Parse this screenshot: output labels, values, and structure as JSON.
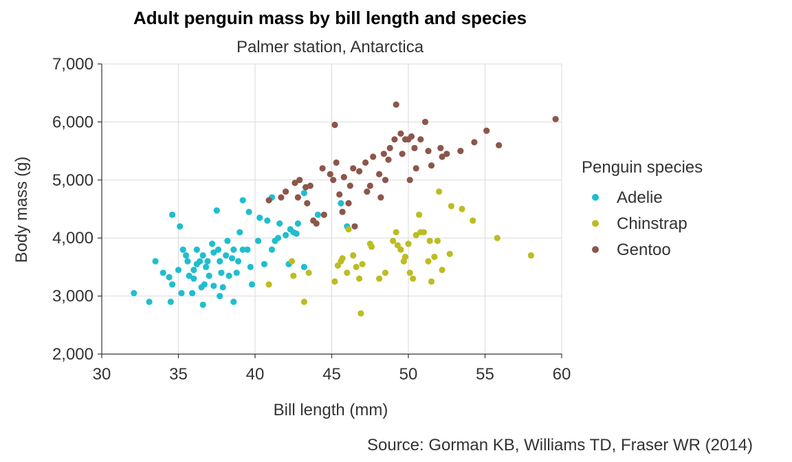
{
  "chart_data": {
    "type": "scatter",
    "title": "Adult penguin mass by bill length and species",
    "subtitle": "Palmer station, Antarctica",
    "xlabel": "Bill length (mm)",
    "ylabel": "Body mass (g)",
    "xlim": [
      30,
      60
    ],
    "ylim": [
      2000,
      7000
    ],
    "xticks": [
      30,
      35,
      40,
      45,
      50,
      55,
      60
    ],
    "xtick_labels": [
      "30",
      "35",
      "40",
      "45",
      "50",
      "55",
      "60"
    ],
    "yticks": [
      2000,
      3000,
      4000,
      5000,
      6000,
      7000
    ],
    "ytick_labels": [
      "2,000",
      "3,000",
      "4,000",
      "5,000",
      "6,000",
      "7,000"
    ],
    "grid": true,
    "legend_title": "Penguin species",
    "legend_position": "right",
    "caption": "Source: Gorman KB, Williams TD, Fraser WR (2014)",
    "series": [
      {
        "name": "Adelie",
        "color": "#1fbecf",
        "points": [
          [
            32.1,
            3050
          ],
          [
            33.1,
            2900
          ],
          [
            33.5,
            3600
          ],
          [
            34.0,
            3400
          ],
          [
            34.4,
            3325
          ],
          [
            34.5,
            2900
          ],
          [
            34.6,
            4400
          ],
          [
            34.6,
            3200
          ],
          [
            35.0,
            3450
          ],
          [
            35.1,
            4200
          ],
          [
            35.2,
            3050
          ],
          [
            35.3,
            3800
          ],
          [
            35.5,
            3700
          ],
          [
            35.6,
            3600
          ],
          [
            35.7,
            3350
          ],
          [
            35.9,
            3050
          ],
          [
            36.0,
            3450
          ],
          [
            36.0,
            3300
          ],
          [
            36.2,
            3800
          ],
          [
            36.2,
            3550
          ],
          [
            36.4,
            3600
          ],
          [
            36.5,
            3150
          ],
          [
            36.6,
            3700
          ],
          [
            36.6,
            2850
          ],
          [
            36.7,
            3200
          ],
          [
            36.8,
            3500
          ],
          [
            36.9,
            3600
          ],
          [
            37.0,
            3350
          ],
          [
            37.2,
            3900
          ],
          [
            37.3,
            3750
          ],
          [
            37.3,
            3175
          ],
          [
            37.5,
            4475
          ],
          [
            37.6,
            3800
          ],
          [
            37.7,
            3600
          ],
          [
            37.7,
            3000
          ],
          [
            37.8,
            3400
          ],
          [
            37.9,
            3150
          ],
          [
            38.1,
            3700
          ],
          [
            38.2,
            3950
          ],
          [
            38.3,
            3350
          ],
          [
            38.5,
            3650
          ],
          [
            38.6,
            3800
          ],
          [
            38.6,
            2900
          ],
          [
            38.8,
            3400
          ],
          [
            38.9,
            3600
          ],
          [
            39.0,
            4100
          ],
          [
            39.2,
            3800
          ],
          [
            39.2,
            4650
          ],
          [
            39.5,
            3800
          ],
          [
            39.6,
            4450
          ],
          [
            39.7,
            3500
          ],
          [
            39.8,
            3200
          ],
          [
            40.2,
            3950
          ],
          [
            40.3,
            4350
          ],
          [
            40.6,
            3550
          ],
          [
            40.8,
            4300
          ],
          [
            41.1,
            3800
          ],
          [
            41.1,
            4700
          ],
          [
            41.3,
            3950
          ],
          [
            41.5,
            4000
          ],
          [
            41.6,
            4250
          ],
          [
            42.0,
            4050
          ],
          [
            42.2,
            3550
          ],
          [
            42.3,
            4150
          ],
          [
            42.5,
            4100
          ],
          [
            42.7,
            4075
          ],
          [
            42.8,
            4250
          ],
          [
            43.2,
            4775
          ],
          [
            43.2,
            3500
          ],
          [
            44.1,
            4400
          ],
          [
            45.6,
            4600
          ],
          [
            46.0,
            4200
          ]
        ]
      },
      {
        "name": "Chinstrap",
        "color": "#bcbd22",
        "points": [
          [
            40.9,
            3200
          ],
          [
            42.4,
            3600
          ],
          [
            42.5,
            3350
          ],
          [
            43.2,
            2900
          ],
          [
            43.5,
            3400
          ],
          [
            45.2,
            3250
          ],
          [
            45.4,
            3525
          ],
          [
            45.6,
            3600
          ],
          [
            45.7,
            3650
          ],
          [
            46.0,
            3400
          ],
          [
            46.1,
            4150
          ],
          [
            46.4,
            3700
          ],
          [
            46.6,
            3500
          ],
          [
            46.8,
            3300
          ],
          [
            46.9,
            2700
          ],
          [
            47.0,
            3550
          ],
          [
            47.5,
            3900
          ],
          [
            47.6,
            3850
          ],
          [
            48.1,
            3300
          ],
          [
            48.5,
            3400
          ],
          [
            49.0,
            3950
          ],
          [
            49.2,
            4100
          ],
          [
            49.3,
            3875
          ],
          [
            49.5,
            3800
          ],
          [
            49.7,
            3600
          ],
          [
            49.8,
            3675
          ],
          [
            50.0,
            3900
          ],
          [
            50.1,
            3400
          ],
          [
            50.3,
            3300
          ],
          [
            50.5,
            4050
          ],
          [
            50.7,
            4400
          ],
          [
            50.8,
            4100
          ],
          [
            51.0,
            4100
          ],
          [
            51.3,
            3600
          ],
          [
            51.4,
            3950
          ],
          [
            51.5,
            3250
          ],
          [
            51.7,
            3675
          ],
          [
            51.9,
            3950
          ],
          [
            52.0,
            4800
          ],
          [
            52.2,
            3450
          ],
          [
            52.7,
            3725
          ],
          [
            52.8,
            4550
          ],
          [
            53.5,
            4500
          ],
          [
            54.2,
            4300
          ],
          [
            55.8,
            4000
          ],
          [
            58.0,
            3700
          ]
        ]
      },
      {
        "name": "Gentoo",
        "color": "#8c564b",
        "points": [
          [
            40.9,
            4650
          ],
          [
            41.7,
            4700
          ],
          [
            42.0,
            4800
          ],
          [
            42.6,
            4950
          ],
          [
            42.8,
            4700
          ],
          [
            42.9,
            5000
          ],
          [
            43.3,
            4875
          ],
          [
            43.4,
            4600
          ],
          [
            43.6,
            4900
          ],
          [
            43.8,
            4300
          ],
          [
            44.0,
            4250
          ],
          [
            44.4,
            5200
          ],
          [
            44.5,
            4400
          ],
          [
            44.9,
            5100
          ],
          [
            45.1,
            5000
          ],
          [
            45.2,
            5950
          ],
          [
            45.3,
            5300
          ],
          [
            45.5,
            4750
          ],
          [
            45.7,
            4450
          ],
          [
            45.8,
            5050
          ],
          [
            46.1,
            4600
          ],
          [
            46.2,
            4900
          ],
          [
            46.4,
            5200
          ],
          [
            46.5,
            4200
          ],
          [
            46.8,
            5150
          ],
          [
            47.2,
            5300
          ],
          [
            47.3,
            4800
          ],
          [
            47.5,
            4900
          ],
          [
            47.7,
            5400
          ],
          [
            48.1,
            5100
          ],
          [
            48.2,
            4700
          ],
          [
            48.4,
            5450
          ],
          [
            48.5,
            5000
          ],
          [
            48.7,
            5350
          ],
          [
            48.8,
            5550
          ],
          [
            49.1,
            5700
          ],
          [
            49.2,
            6300
          ],
          [
            49.5,
            5800
          ],
          [
            49.6,
            5450
          ],
          [
            49.8,
            5700
          ],
          [
            50.0,
            5700
          ],
          [
            50.1,
            5000
          ],
          [
            50.2,
            5750
          ],
          [
            50.4,
            5550
          ],
          [
            50.5,
            5200
          ],
          [
            50.8,
            5700
          ],
          [
            51.1,
            6000
          ],
          [
            51.3,
            5500
          ],
          [
            51.5,
            5250
          ],
          [
            52.1,
            5550
          ],
          [
            52.2,
            5400
          ],
          [
            52.5,
            5450
          ],
          [
            53.4,
            5500
          ],
          [
            54.3,
            5650
          ],
          [
            55.1,
            5850
          ],
          [
            55.9,
            5600
          ],
          [
            59.6,
            6050
          ]
        ]
      }
    ]
  }
}
